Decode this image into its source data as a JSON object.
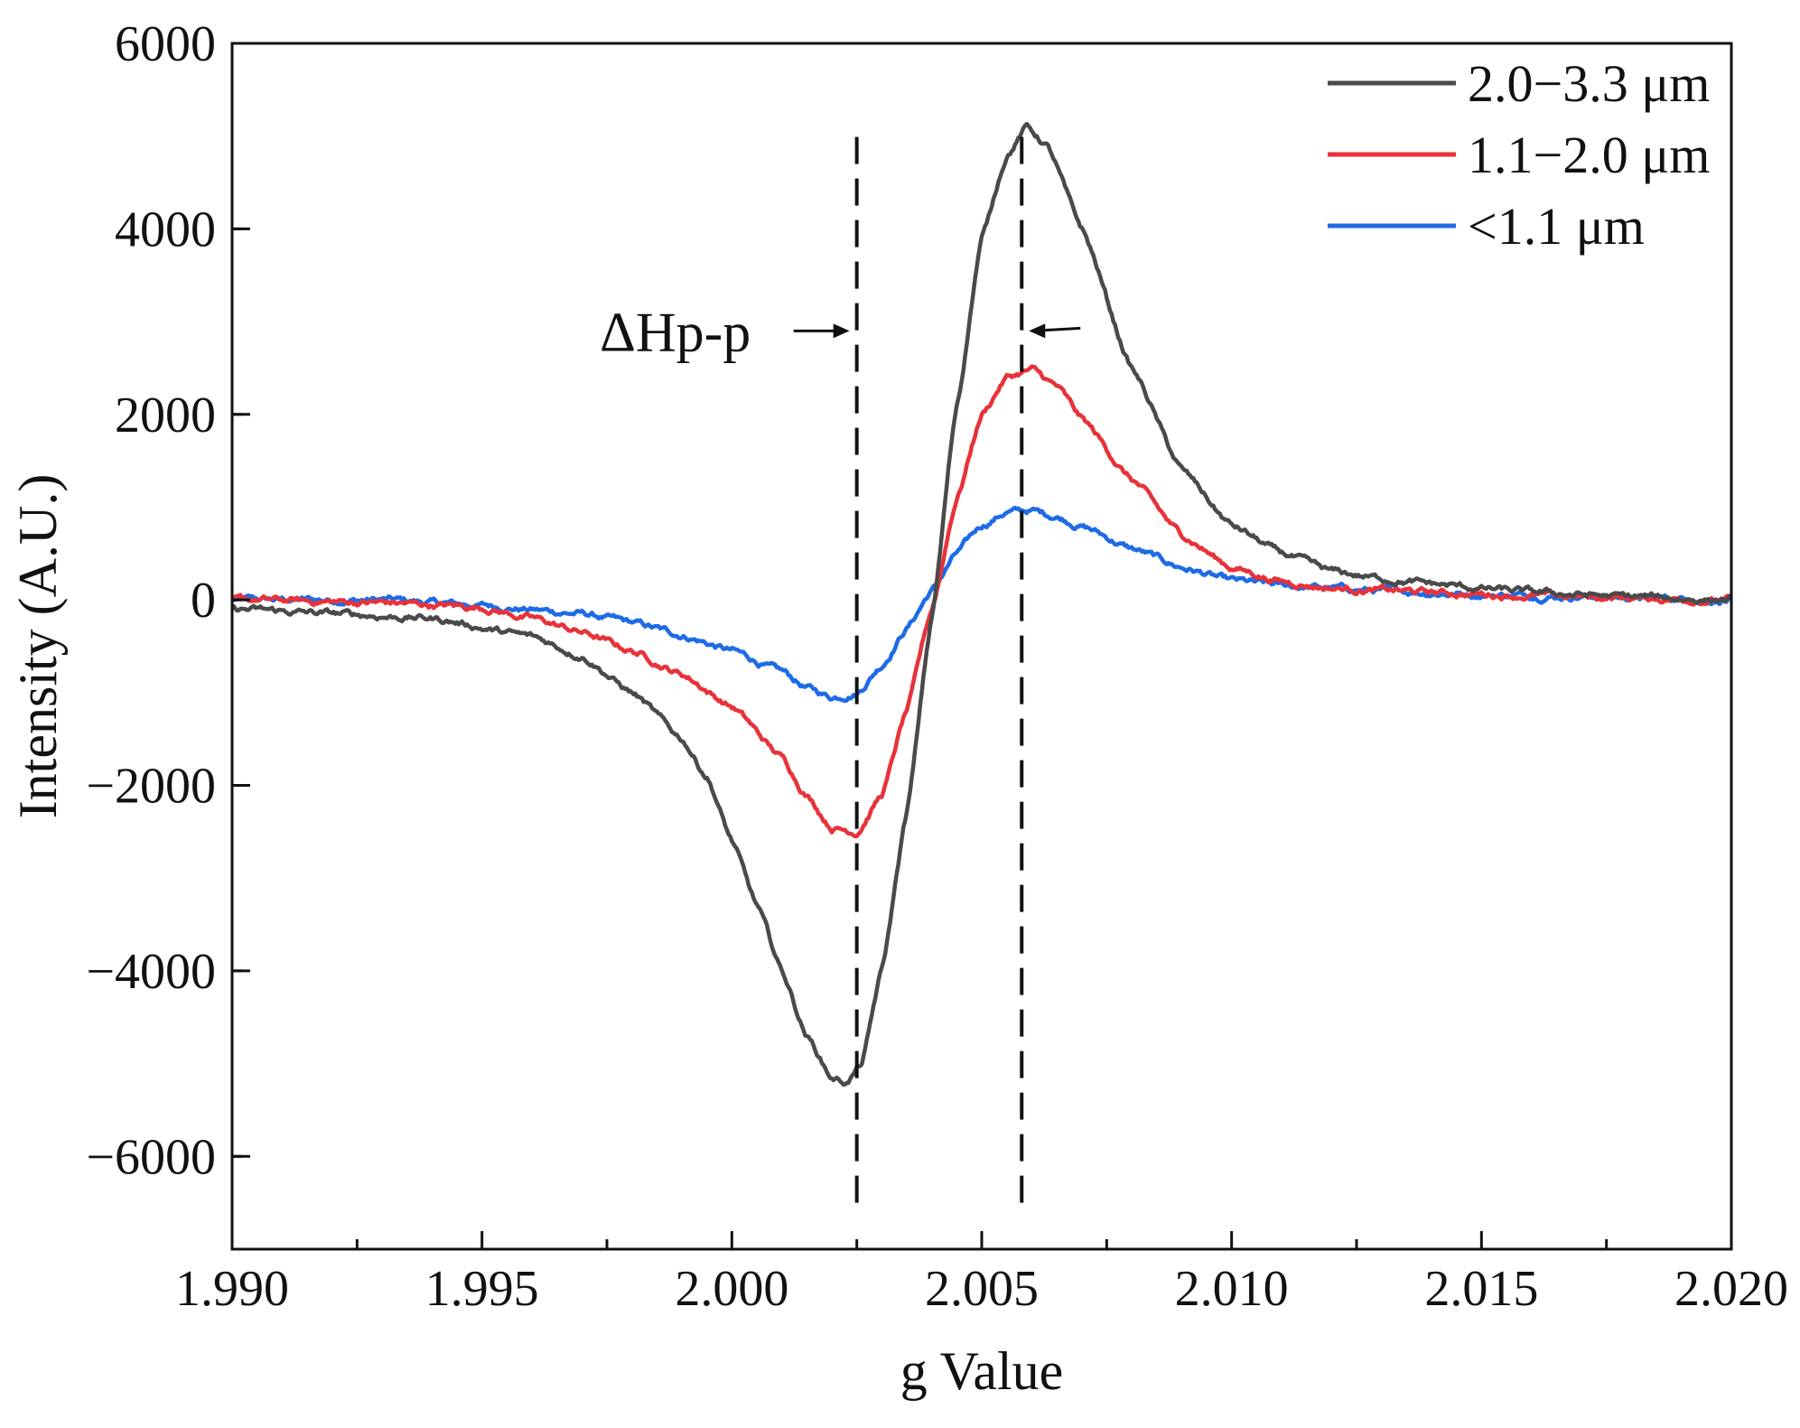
{
  "chart_data": {
    "type": "line",
    "title": "",
    "xlabel": "g Value",
    "ylabel": "Intensity (A.U.)",
    "xlim": [
      1.99,
      2.02
    ],
    "ylim": [
      -7000,
      6000
    ],
    "xticks": [
      1.99,
      1.995,
      2.0,
      2.005,
      2.01,
      2.015,
      2.02
    ],
    "xtick_labels": [
      "1.990",
      "1.995",
      "2.000",
      "2.005",
      "2.010",
      "2.015",
      "2.020"
    ],
    "yticks": [
      -6000,
      -4000,
      -2000,
      0,
      2000,
      4000,
      6000
    ],
    "ytick_labels": [
      "−6000",
      "−4000",
      "−2000",
      "0",
      "2000",
      "4000",
      "6000"
    ],
    "grid": false,
    "legend_position": "top-right",
    "series": [
      {
        "name": "2.0−3.3 μm",
        "color": "#4a4a4a",
        "x": [
          1.99,
          1.992,
          1.994,
          1.996,
          1.997,
          1.998,
          1.999,
          1.9995,
          2.0,
          2.0005,
          2.001,
          2.0015,
          2.002,
          2.0023,
          2.0026,
          2.003,
          2.0035,
          2.004,
          2.0045,
          2.005,
          2.0055,
          2.0059,
          2.0063,
          2.007,
          2.008,
          2.009,
          2.01,
          2.011,
          2.012,
          2.013,
          2.014,
          2.015,
          2.016,
          2.018,
          2.02
        ],
        "y": [
          -100,
          -150,
          -200,
          -400,
          -600,
          -1000,
          -1500,
          -1900,
          -2600,
          -3300,
          -4000,
          -4700,
          -5150,
          -5200,
          -5000,
          -4000,
          -2300,
          -200,
          2100,
          3900,
          4800,
          5100,
          4900,
          4000,
          2500,
          1400,
          800,
          500,
          300,
          230,
          170,
          120,
          80,
          30,
          0
        ]
      },
      {
        "name": "1.1−2.0 μm",
        "color": "#e8323a",
        "x": [
          1.99,
          1.993,
          1.995,
          1.996,
          1.997,
          1.998,
          1.999,
          2.0,
          2.001,
          2.0015,
          2.002,
          2.0025,
          2.003,
          2.0035,
          2.004,
          2.0045,
          2.005,
          2.0055,
          2.006,
          2.0065,
          2.007,
          2.008,
          2.009,
          2.01,
          2.011,
          2.012,
          2.013,
          2.015,
          2.017,
          2.02
        ],
        "y": [
          0,
          -30,
          -80,
          -200,
          -350,
          -550,
          -800,
          -1150,
          -1700,
          -2100,
          -2450,
          -2500,
          -2100,
          -1200,
          -100,
          1100,
          2000,
          2400,
          2480,
          2300,
          1950,
          1300,
          700,
          350,
          200,
          130,
          100,
          60,
          30,
          0
        ]
      },
      {
        "name": "<1.1 μm",
        "color": "#1e6be6",
        "x": [
          1.99,
          1.993,
          1.995,
          1.997,
          1.998,
          1.999,
          2.0,
          2.001,
          2.0015,
          2.002,
          2.0025,
          2.003,
          2.0035,
          2.004,
          2.0045,
          2.005,
          2.0055,
          2.006,
          2.0065,
          2.007,
          2.008,
          2.009,
          2.01,
          2.011,
          2.013,
          2.015,
          2.017,
          2.02
        ],
        "y": [
          0,
          0,
          -60,
          -150,
          -250,
          -380,
          -550,
          -780,
          -950,
          -1050,
          -1000,
          -700,
          -300,
          100,
          500,
          800,
          950,
          960,
          900,
          800,
          550,
          350,
          200,
          150,
          100,
          60,
          40,
          0
        ]
      }
    ],
    "reference_lines": [
      {
        "orientation": "vertical",
        "style": "dashed",
        "x": 2.0025,
        "y_from": -6500,
        "y_to": 5000
      },
      {
        "orientation": "vertical",
        "style": "dashed",
        "x": 2.0058,
        "y_from": -6500,
        "y_to": 5000
      }
    ],
    "annotations": [
      {
        "text": "ΔHp-p",
        "x": 1.9995,
        "y": 2900
      }
    ],
    "noise_amplitude": 50
  }
}
